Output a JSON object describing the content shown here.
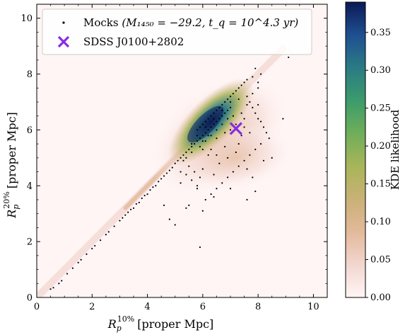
{
  "chart_data": {
    "type": "scatter",
    "xlabel": {
      "symbol": "R",
      "sub": "p",
      "sup": "10%",
      "unit": "[proper Mpc]"
    },
    "ylabel": {
      "symbol": "R",
      "sub": "p",
      "sup": "20%",
      "unit": "[proper Mpc]"
    },
    "xlim": [
      0,
      10.5
    ],
    "ylim": [
      0,
      10.5
    ],
    "xticks": [
      0,
      2,
      4,
      6,
      8,
      10
    ],
    "yticks": [
      0,
      2,
      4,
      6,
      8,
      10
    ],
    "grid": false,
    "legend_position": "top-left",
    "legend": [
      {
        "label_text": "Mocks",
        "label_math": "(M₁₄₅₀ = −29.2, t_q = 10^4.3 yr)",
        "marker": "dot"
      },
      {
        "label_text": "SDSS J0100+2802",
        "marker": "x"
      }
    ],
    "series": [
      {
        "name": "Mocks",
        "marker": "dot",
        "color": "#000000",
        "points": [
          [
            0.5,
            0.3
          ],
          [
            0.6,
            0.35
          ],
          [
            0.8,
            0.5
          ],
          [
            0.9,
            0.6
          ],
          [
            1.1,
            0.85
          ],
          [
            1.3,
            1.05
          ],
          [
            1.5,
            1.25
          ],
          [
            1.6,
            1.35
          ],
          [
            1.8,
            1.55
          ],
          [
            2.0,
            1.75
          ],
          [
            2.1,
            1.85
          ],
          [
            2.3,
            2.05
          ],
          [
            2.5,
            2.25
          ],
          [
            2.6,
            2.35
          ],
          [
            2.8,
            2.55
          ],
          [
            3.0,
            2.75
          ],
          [
            3.1,
            2.85
          ],
          [
            3.2,
            2.95
          ],
          [
            3.3,
            3.05
          ],
          [
            3.4,
            3.15
          ],
          [
            3.5,
            3.2
          ],
          [
            3.6,
            3.35
          ],
          [
            3.7,
            3.4
          ],
          [
            3.8,
            3.55
          ],
          [
            3.9,
            3.65
          ],
          [
            4.0,
            3.7
          ],
          [
            4.1,
            3.85
          ],
          [
            4.2,
            3.95
          ],
          [
            4.3,
            4.0
          ],
          [
            4.4,
            4.15
          ],
          [
            4.5,
            4.25
          ],
          [
            4.6,
            4.35
          ],
          [
            4.7,
            4.45
          ],
          [
            4.8,
            4.55
          ],
          [
            4.9,
            4.65
          ],
          [
            5.0,
            4.8
          ],
          [
            5.1,
            4.9
          ],
          [
            5.2,
            5.0
          ],
          [
            5.3,
            5.1
          ],
          [
            5.4,
            5.2
          ],
          [
            5.5,
            5.3
          ],
          [
            5.6,
            5.4
          ],
          [
            5.7,
            5.5
          ],
          [
            5.8,
            5.6
          ],
          [
            5.9,
            5.7
          ],
          [
            6.0,
            5.8
          ],
          [
            6.1,
            5.9
          ],
          [
            6.2,
            6.0
          ],
          [
            6.3,
            6.1
          ],
          [
            6.4,
            6.2
          ],
          [
            6.5,
            6.3
          ],
          [
            6.6,
            6.4
          ],
          [
            6.7,
            6.5
          ],
          [
            6.8,
            6.6
          ],
          [
            6.9,
            6.7
          ],
          [
            7.0,
            6.8
          ],
          [
            5.8,
            6.0
          ],
          [
            5.9,
            6.1
          ],
          [
            6.0,
            6.2
          ],
          [
            6.1,
            6.3
          ],
          [
            6.2,
            6.4
          ],
          [
            6.3,
            6.5
          ],
          [
            6.4,
            6.6
          ],
          [
            6.5,
            6.7
          ],
          [
            6.6,
            6.8
          ],
          [
            6.7,
            6.9
          ],
          [
            6.8,
            7.0
          ],
          [
            6.9,
            7.1
          ],
          [
            7.0,
            7.2
          ],
          [
            7.1,
            7.3
          ],
          [
            7.2,
            7.4
          ],
          [
            7.3,
            7.5
          ],
          [
            7.4,
            7.6
          ],
          [
            7.5,
            7.7
          ],
          [
            7.6,
            7.8
          ],
          [
            7.8,
            7.9
          ],
          [
            8.0,
            7.7
          ],
          [
            7.6,
            7.2
          ],
          [
            7.7,
            7.0
          ],
          [
            7.8,
            6.8
          ],
          [
            7.9,
            6.6
          ],
          [
            8.0,
            6.4
          ],
          [
            8.1,
            6.3
          ],
          [
            8.2,
            6.1
          ],
          [
            8.3,
            5.9
          ],
          [
            8.4,
            5.7
          ],
          [
            8.1,
            5.5
          ],
          [
            7.9,
            5.3
          ],
          [
            7.7,
            5.1
          ],
          [
            7.5,
            4.9
          ],
          [
            7.3,
            4.7
          ],
          [
            7.1,
            4.5
          ],
          [
            6.9,
            4.3
          ],
          [
            6.7,
            4.1
          ],
          [
            6.5,
            3.9
          ],
          [
            6.3,
            3.7
          ],
          [
            6.1,
            3.5
          ],
          [
            5.9,
            4.3
          ],
          [
            5.7,
            4.5
          ],
          [
            5.5,
            4.7
          ],
          [
            5.3,
            4.9
          ],
          [
            6.0,
            5.3
          ],
          [
            6.5,
            5.7
          ],
          [
            7.0,
            6.0
          ],
          [
            7.5,
            6.4
          ],
          [
            8.0,
            6.9
          ],
          [
            6.2,
            5.1
          ],
          [
            6.8,
            5.4
          ],
          [
            7.4,
            5.8
          ],
          [
            7.2,
            5.2
          ],
          [
            6.6,
            4.8
          ],
          [
            6.4,
            4.4
          ],
          [
            7.6,
            4.6
          ],
          [
            8.2,
            4.9
          ],
          [
            8.5,
            5.0
          ],
          [
            8.9,
            6.4
          ],
          [
            9.1,
            8.6
          ],
          [
            8.1,
            8.0
          ],
          [
            7.9,
            8.2
          ],
          [
            5.5,
            3.3
          ],
          [
            6.0,
            3.1
          ],
          [
            6.4,
            3.6
          ],
          [
            5.8,
            3.9
          ],
          [
            7.0,
            3.9
          ],
          [
            7.8,
            4.3
          ],
          [
            4.6,
            3.3
          ],
          [
            4.8,
            2.8
          ],
          [
            5.0,
            2.6
          ],
          [
            5.4,
            3.2
          ],
          [
            5.2,
            4.1
          ],
          [
            7.9,
            3.8
          ],
          [
            5.9,
            1.8
          ],
          [
            7.6,
            3.5
          ],
          [
            6.3,
            5.8
          ],
          [
            6.5,
            6.0
          ],
          [
            6.7,
            6.2
          ],
          [
            6.9,
            6.4
          ],
          [
            7.1,
            6.5
          ],
          [
            6.0,
            5.6
          ],
          [
            6.2,
            5.8
          ],
          [
            5.6,
            5.5
          ],
          [
            5.8,
            5.8
          ],
          [
            6.1,
            6.1
          ],
          [
            6.4,
            6.4
          ],
          [
            6.7,
            6.7
          ],
          [
            7.0,
            7.0
          ],
          [
            7.3,
            7.1
          ],
          [
            6.8,
            5.9
          ],
          [
            7.2,
            6.2
          ],
          [
            7.4,
            6.6
          ],
          [
            7.6,
            6.9
          ],
          [
            7.8,
            7.3
          ],
          [
            8.0,
            7.5
          ],
          [
            5.4,
            5.0
          ],
          [
            5.6,
            5.2
          ],
          [
            5.9,
            5.4
          ],
          [
            6.1,
            5.6
          ],
          [
            6.3,
            5.3
          ],
          [
            6.5,
            5.1
          ],
          [
            6.9,
            5.0
          ],
          [
            7.3,
            5.5
          ],
          [
            7.7,
            5.9
          ],
          [
            7.5,
            6.1
          ],
          [
            5.2,
            4.5
          ],
          [
            5.4,
            4.4
          ],
          [
            5.6,
            4.2
          ],
          [
            5.8,
            4.0
          ],
          [
            6.0,
            4.6
          ]
        ]
      },
      {
        "name": "SDSS J0100+2802",
        "marker": "x",
        "color": "#8a2be2",
        "points": [
          [
            7.2,
            6.05
          ]
        ]
      }
    ],
    "density": {
      "name": "KDE likelihood",
      "note": "kernel density estimate rendered as heatmap",
      "peak": [
        6.3,
        6.3
      ],
      "max": 0.39
    },
    "colorbar": {
      "label": "KDE likelihood",
      "ticks": [
        0.0,
        0.05,
        0.1,
        0.15,
        0.2,
        0.25,
        0.3,
        0.35
      ],
      "tick_labels": [
        "0.00",
        "0.05",
        "0.10",
        "0.15",
        "0.20",
        "0.25",
        "0.30",
        "0.35"
      ],
      "range": [
        0,
        0.39
      ],
      "colors": [
        "#fff5f5",
        "#f2d6cf",
        "#e3b99a",
        "#c9b176",
        "#a8b55a",
        "#6fae5a",
        "#3c9b6b",
        "#2a7b84",
        "#1f4f91",
        "#0b1a55"
      ]
    }
  }
}
